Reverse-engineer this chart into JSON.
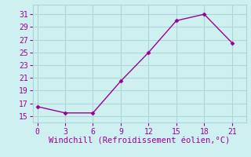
{
  "x": [
    0,
    3,
    6,
    9,
    12,
    15,
    18,
    21
  ],
  "y": [
    16.5,
    15.5,
    15.5,
    20.5,
    25.0,
    30.0,
    31.0,
    26.5
  ],
  "line_color": "#990099",
  "marker": "D",
  "marker_size": 2.5,
  "xlabel": "Windchill (Refroidissement éolien,°C)",
  "xlim": [
    -0.5,
    22.5
  ],
  "ylim": [
    14.0,
    32.5
  ],
  "xticks": [
    0,
    3,
    6,
    9,
    12,
    15,
    18,
    21
  ],
  "yticks": [
    15,
    17,
    19,
    21,
    23,
    25,
    27,
    29,
    31
  ],
  "bg_color": "#cff0f0",
  "grid_color": "#aad8d8",
  "xlabel_color": "#990099",
  "xlabel_fontsize": 7.5,
  "tick_fontsize": 7,
  "tick_color": "#990099",
  "line_width": 1.0
}
